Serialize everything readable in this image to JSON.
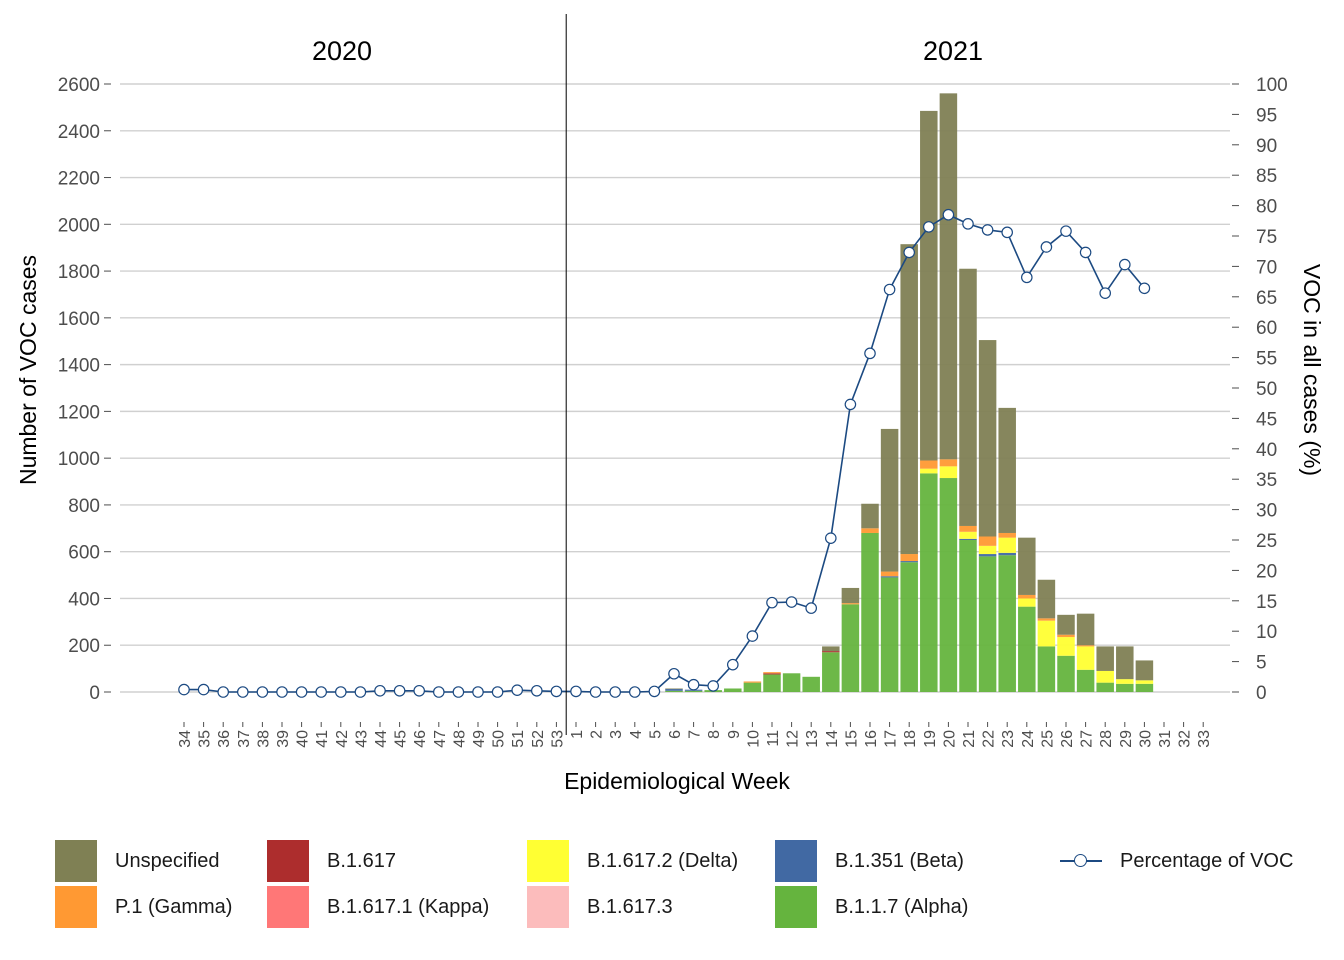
{
  "chart_data": {
    "type": "bar",
    "stacked": true,
    "panels": [
      {
        "label": "2020",
        "weeks": [
          "34",
          "35",
          "36",
          "37",
          "38",
          "39",
          "40",
          "41",
          "42",
          "43",
          "44",
          "45",
          "46",
          "47",
          "48",
          "49",
          "50",
          "51",
          "52",
          "53"
        ]
      },
      {
        "label": "2021",
        "weeks": [
          "1",
          "2",
          "3",
          "4",
          "5",
          "6",
          "7",
          "8",
          "9",
          "10",
          "11",
          "12",
          "13",
          "14",
          "15",
          "16",
          "17",
          "18",
          "19",
          "20",
          "21",
          "22",
          "23",
          "24",
          "25",
          "26",
          "27",
          "28",
          "29",
          "30",
          "31",
          "32",
          "33"
        ]
      }
    ],
    "xlabel": "Epidemiological Week",
    "ylabel": "Number of VOC cases",
    "y2label": "VOC in all cases (%)",
    "ylim": [
      0,
      2600
    ],
    "yticks": [
      0,
      200,
      400,
      600,
      800,
      1000,
      1200,
      1400,
      1600,
      1800,
      2000,
      2200,
      2400,
      2600
    ],
    "y2lim": [
      0,
      100
    ],
    "y2ticks": [
      0,
      5,
      10,
      15,
      20,
      25,
      30,
      35,
      40,
      45,
      50,
      55,
      60,
      65,
      70,
      75,
      80,
      85,
      90,
      95,
      100
    ],
    "grid": true,
    "legend_position": "bottom",
    "series": [
      {
        "name": "B.1.1.7 (Alpha)",
        "color": "#65b43e",
        "values": [
          0,
          0,
          0,
          0,
          0,
          0,
          0,
          0,
          0,
          0,
          0,
          0,
          0,
          0,
          0,
          0,
          0,
          0,
          0,
          0,
          0,
          0,
          0,
          0,
          0,
          5,
          5,
          8,
          15,
          40,
          75,
          80,
          65,
          170,
          375,
          680,
          490,
          555,
          935,
          915,
          650,
          580,
          585,
          365,
          195,
          155,
          95,
          40,
          35,
          35,
          0,
          0,
          0
        ]
      },
      {
        "name": "B.1.351 (Beta)",
        "color": "#4169a3",
        "values": [
          0,
          0,
          0,
          0,
          0,
          0,
          0,
          0,
          0,
          0,
          0,
          0,
          0,
          0,
          0,
          0,
          0,
          0,
          0,
          0,
          0,
          0,
          0,
          0,
          0,
          8,
          5,
          0,
          0,
          0,
          0,
          0,
          0,
          0,
          0,
          0,
          5,
          5,
          0,
          0,
          5,
          10,
          10,
          0,
          0,
          0,
          0,
          0,
          0,
          0,
          0,
          0,
          0
        ]
      },
      {
        "name": "B.1.617.3",
        "color": "#fcbcbc",
        "values": [
          0,
          0,
          0,
          0,
          0,
          0,
          0,
          0,
          0,
          0,
          0,
          0,
          0,
          0,
          0,
          0,
          0,
          0,
          0,
          0,
          0,
          0,
          0,
          0,
          0,
          0,
          0,
          0,
          0,
          0,
          0,
          0,
          0,
          0,
          0,
          0,
          0,
          0,
          0,
          0,
          0,
          0,
          0,
          0,
          0,
          0,
          0,
          0,
          0,
          0,
          0,
          0,
          0
        ]
      },
      {
        "name": "B.1.617.2 (Delta)",
        "color": "#ffff33",
        "values": [
          0,
          0,
          0,
          0,
          0,
          0,
          0,
          0,
          0,
          0,
          0,
          0,
          0,
          0,
          0,
          0,
          0,
          0,
          0,
          0,
          0,
          0,
          0,
          0,
          0,
          0,
          0,
          0,
          0,
          0,
          0,
          0,
          0,
          0,
          0,
          0,
          0,
          0,
          20,
          50,
          30,
          35,
          65,
          35,
          110,
          80,
          100,
          50,
          20,
          15,
          0,
          0,
          0
        ]
      },
      {
        "name": "B.1.617.1 (Kappa)",
        "color": "#ff7777",
        "values": [
          0,
          0,
          0,
          0,
          0,
          0,
          0,
          0,
          0,
          0,
          0,
          0,
          0,
          0,
          0,
          0,
          0,
          0,
          0,
          0,
          0,
          0,
          0,
          0,
          0,
          0,
          0,
          0,
          0,
          0,
          0,
          0,
          0,
          0,
          0,
          0,
          0,
          0,
          0,
          0,
          0,
          0,
          0,
          0,
          0,
          0,
          0,
          0,
          0,
          0,
          0,
          0,
          0
        ]
      },
      {
        "name": "B.1.617",
        "color": "#ad2d2d",
        "values": [
          0,
          0,
          0,
          0,
          0,
          0,
          0,
          0,
          0,
          0,
          0,
          0,
          0,
          0,
          0,
          0,
          0,
          0,
          0,
          0,
          0,
          0,
          0,
          0,
          0,
          0,
          0,
          0,
          0,
          0,
          5,
          0,
          0,
          5,
          0,
          0,
          0,
          0,
          0,
          0,
          0,
          0,
          0,
          0,
          0,
          0,
          0,
          0,
          0,
          0,
          0,
          0,
          0
        ]
      },
      {
        "name": "P.1 (Gamma)",
        "color": "#ff9933",
        "values": [
          0,
          0,
          0,
          0,
          0,
          0,
          0,
          0,
          0,
          0,
          0,
          0,
          0,
          0,
          0,
          0,
          0,
          0,
          0,
          0,
          0,
          0,
          0,
          0,
          0,
          0,
          0,
          0,
          0,
          5,
          5,
          0,
          0,
          0,
          5,
          20,
          20,
          30,
          35,
          30,
          25,
          40,
          20,
          15,
          10,
          10,
          5,
          0,
          0,
          0,
          0,
          0,
          0
        ]
      },
      {
        "name": "Unspecified",
        "color": "#7f8054",
        "values": [
          0,
          0,
          0,
          0,
          0,
          0,
          0,
          0,
          0,
          0,
          0,
          0,
          0,
          0,
          0,
          0,
          0,
          0,
          0,
          0,
          0,
          0,
          0,
          0,
          0,
          2,
          0,
          0,
          0,
          0,
          0,
          0,
          0,
          20,
          65,
          105,
          610,
          1325,
          1495,
          1565,
          1100,
          840,
          535,
          245,
          165,
          85,
          135,
          105,
          140,
          85,
          0,
          0,
          0
        ]
      },
      {
        "name": "Percentage of VOC",
        "type": "line",
        "color": "#1c4a82",
        "values": [
          0.4,
          0.4,
          0,
          0,
          0,
          0,
          0,
          0,
          0,
          0,
          0.2,
          0.2,
          0.2,
          0,
          0,
          0,
          0,
          0.3,
          0.2,
          0.1,
          0.1,
          0,
          0,
          0,
          0.1,
          3,
          1.2,
          1,
          4.5,
          9.2,
          14.7,
          14.8,
          13.8,
          25.3,
          47.3,
          55.7,
          66.2,
          72.3,
          76.5,
          78.5,
          77,
          76,
          75.6,
          68.2,
          73.2,
          75.8,
          72.3,
          65.6,
          70.3,
          66.4,
          null,
          null,
          null
        ]
      }
    ]
  },
  "legend": {
    "items": [
      {
        "label": "Unspecified",
        "color": "#7f8054"
      },
      {
        "label": "P.1 (Gamma)",
        "color": "#ff9933"
      },
      {
        "label": "B.1.617",
        "color": "#ad2d2d"
      },
      {
        "label": "B.1.617.1 (Kappa)",
        "color": "#ff7777"
      },
      {
        "label": "B.1.617.2 (Delta)",
        "color": "#ffff33"
      },
      {
        "label": "B.1.617.3",
        "color": "#fcbcbc"
      },
      {
        "label": "B.1.351 (Beta)",
        "color": "#4169a3"
      },
      {
        "label": "B.1.1.7 (Alpha)",
        "color": "#65b43e"
      },
      {
        "label": "Percentage of VOC",
        "color": "#1c4a82"
      }
    ]
  }
}
